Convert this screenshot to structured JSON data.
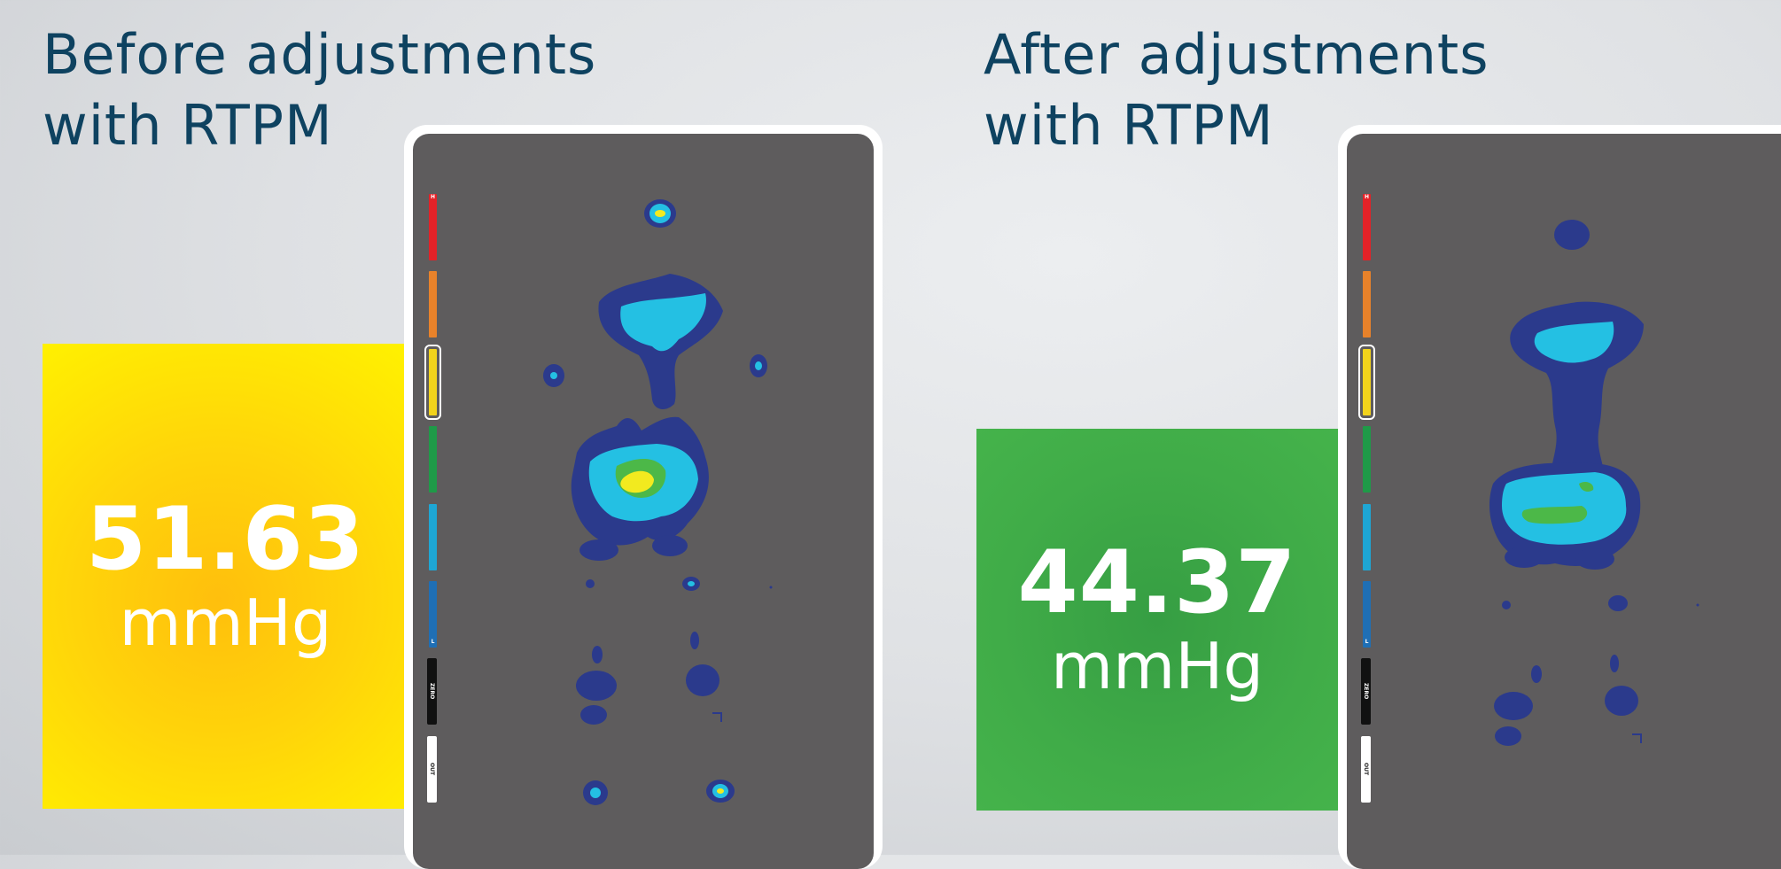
{
  "panels": {
    "before": {
      "heading_line1": "Before adjustments",
      "heading_line2": "with RTPM",
      "value": "51.63",
      "unit": "mmHg",
      "status_color": "#ffd40a"
    },
    "after": {
      "heading_line1": "After adjustments",
      "heading_line2": "with RTPM",
      "value": "44.37",
      "unit": "mmHg",
      "status_color": "#40ac48"
    }
  },
  "scale": {
    "high_marker": "H",
    "low_marker": "L",
    "colors": [
      "#e32228",
      "#e8822a",
      "#f2d31b",
      "#1f9a48",
      "#1ea6d4",
      "#1f6fb5"
    ],
    "selected_index": 2,
    "zero_label": "ZERO",
    "out_label": "OUT"
  },
  "pressure_palette": {
    "low": "#2b3a8c",
    "low_mid": "#24c0e3",
    "mid": "#4cb848",
    "high": "#f2ea1f"
  }
}
